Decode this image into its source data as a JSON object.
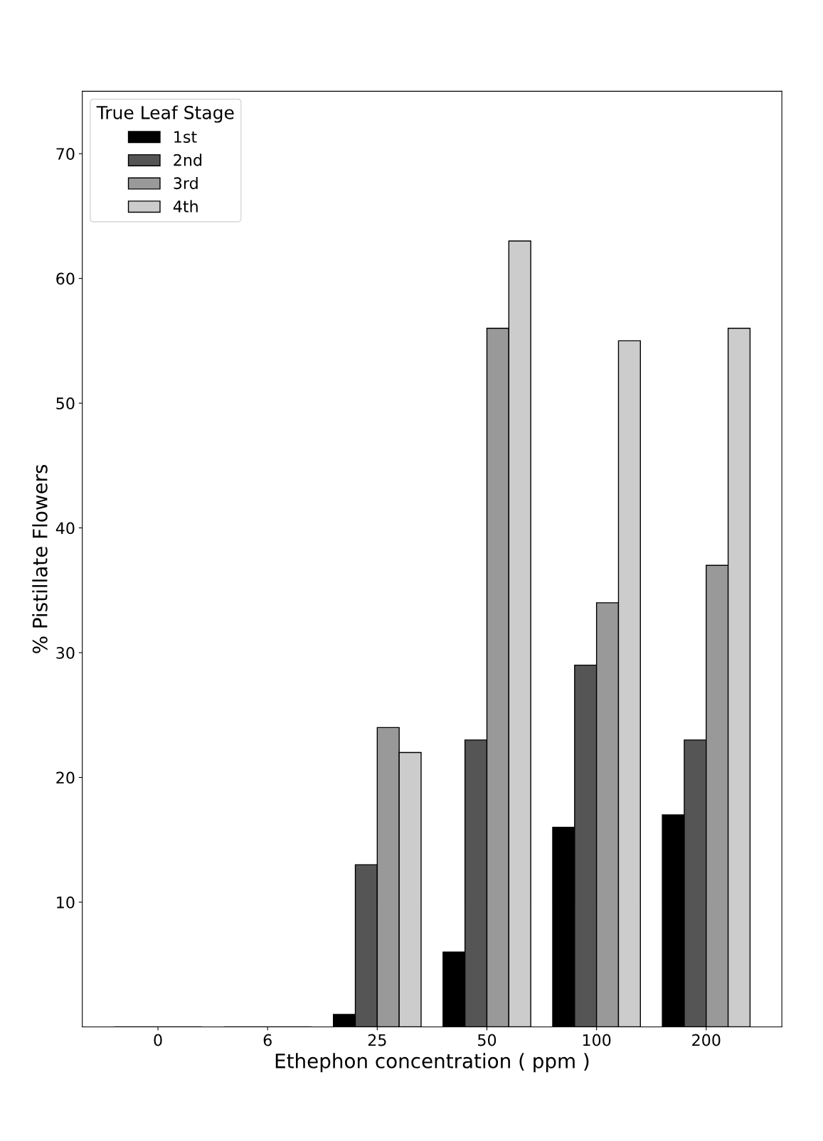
{
  "chart_data": {
    "type": "bar",
    "xlabel": "Ethephon concentration ( ppm )",
    "ylabel": "% Pistillate Flowers",
    "legend_title": "True Leaf Stage",
    "categories": [
      "0",
      "6",
      "25",
      "50",
      "100",
      "200"
    ],
    "series": [
      {
        "name": "1st",
        "color": "#000000",
        "values": [
          0,
          0,
          1,
          6,
          16,
          17
        ]
      },
      {
        "name": "2nd",
        "color": "#555555",
        "values": [
          0,
          0,
          13,
          23,
          29,
          23
        ]
      },
      {
        "name": "3rd",
        "color": "#999999",
        "values": [
          0,
          0,
          24,
          56,
          34,
          37
        ]
      },
      {
        "name": "4th",
        "color": "#cccccc",
        "values": [
          0,
          0,
          22,
          63,
          55,
          56
        ]
      }
    ],
    "ylim": [
      0,
      75
    ],
    "yticks": [
      10,
      20,
      30,
      40,
      50,
      60,
      70
    ],
    "grid": false,
    "legend": "top left"
  }
}
